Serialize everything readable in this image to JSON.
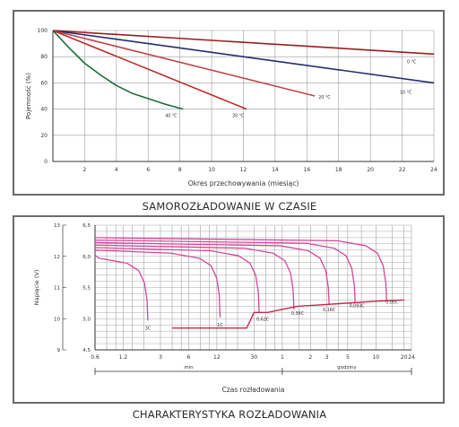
{
  "chart_data": [
    {
      "type": "line",
      "caption": "SAMOROZŁADOWANIE W CZASIE",
      "xlabel": "Okres przechowywania (miesiąc)",
      "ylabel": "Pojemność (%)",
      "xlim": [
        0,
        24
      ],
      "ylim": [
        0,
        100
      ],
      "xticks": [
        2,
        4,
        6,
        8,
        10,
        12,
        14,
        16,
        18,
        20,
        22,
        24
      ],
      "yticks": [
        0,
        20,
        40,
        60,
        80,
        100
      ],
      "grid": true,
      "series": [
        {
          "name": "0 °C",
          "color": "#9c1c1c",
          "x": [
            0,
            24
          ],
          "y": [
            100,
            82
          ]
        },
        {
          "name": "10 °C",
          "color": "#262b6e",
          "x": [
            0,
            24
          ],
          "y": [
            100,
            60
          ]
        },
        {
          "name": "20 °C",
          "color": "#c0454e",
          "x": [
            0,
            16.5
          ],
          "y": [
            100,
            50
          ]
        },
        {
          "name": "30 °C",
          "color": "#b92b2b",
          "x": [
            0,
            12.2
          ],
          "y": [
            100,
            40
          ]
        },
        {
          "name": "40 °C",
          "color": "#1f6b3b",
          "x": [
            0,
            1,
            2,
            3,
            4,
            5,
            6,
            7,
            8.2
          ],
          "y": [
            100,
            87,
            75,
            66,
            58,
            52,
            48,
            44,
            40
          ]
        }
      ]
    },
    {
      "type": "line",
      "caption": "CHARAKTERYSTYKA ROZŁADOWANIA",
      "xlabel": "Czas rozładowania",
      "ylabel": "Napięcie (V)",
      "x_ticklabels": [
        "0.6",
        "1.2",
        "3",
        "6",
        "12",
        "30",
        "1",
        "2",
        "3",
        "5",
        "10",
        "20",
        "24"
      ],
      "unit_labels": [
        "min",
        "godziny"
      ],
      "y_outer_ticklabels": [
        "13",
        "12",
        "11",
        "10",
        "9"
      ],
      "y_inner_ticklabels": [
        "6,5",
        "6,0",
        "5,5",
        "5,0",
        "4,5"
      ],
      "ylim": [
        4.5,
        6.5
      ],
      "grid": true,
      "series": [
        {
          "name": "3C",
          "start": 6.02,
          "knee_min": 2.2,
          "end": 4.97
        },
        {
          "name": "1C",
          "start": 6.1,
          "knee_min": 13,
          "end": 5.02
        },
        {
          "name": "0,62C",
          "start": 6.14,
          "knee_min": 34,
          "end": 5.1
        },
        {
          "name": "0,36C",
          "start": 6.18,
          "knee_min": 80,
          "end": 5.15
        },
        {
          "name": "0,16C",
          "start": 6.22,
          "knee_min": 190,
          "end": 5.22
        },
        {
          "name": "0,093C",
          "start": 6.26,
          "knee_min": 360,
          "end": 5.27
        },
        {
          "name": "0,05C",
          "start": 6.3,
          "knee_min": 780,
          "end": 5.3
        }
      ],
      "cutoff": {
        "x_min": [
          4,
          25,
          30,
          42,
          60,
          90,
          150,
          300,
          600,
          1200
        ],
        "y": [
          4.85,
          4.85,
          5.1,
          5.1,
          5.15,
          5.2,
          5.22,
          5.25,
          5.28,
          5.3
        ]
      }
    }
  ]
}
